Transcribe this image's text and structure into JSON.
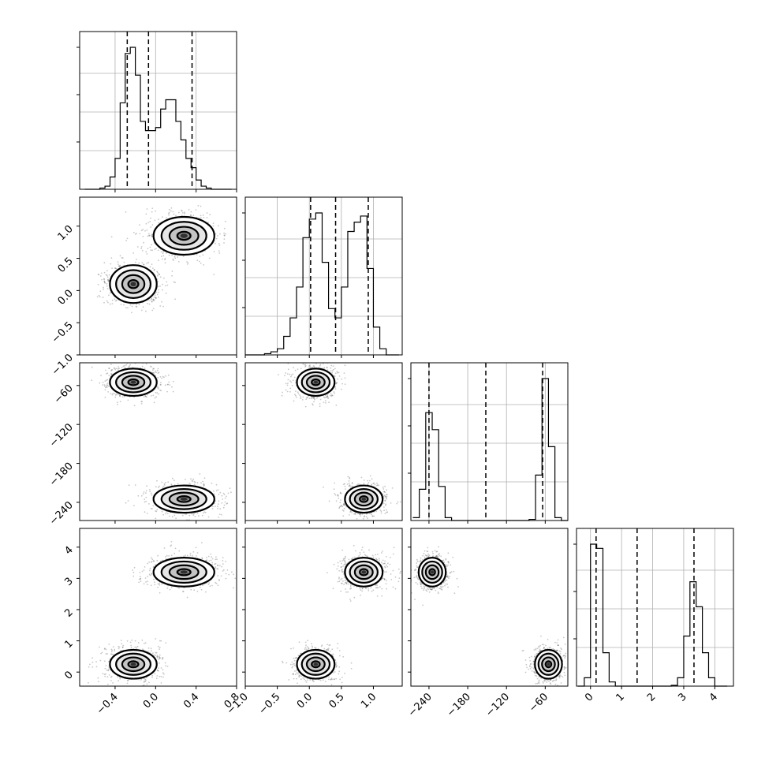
{
  "chart_data": {
    "type": "corner",
    "parameters": [
      {
        "ticks": [
          -0.4,
          0.0,
          0.4,
          0.8
        ],
        "tick_labels": [
          "−0.4",
          "0.0",
          "0.4",
          "0.8"
        ],
        "range": [
          -0.75,
          0.8
        ],
        "quantiles": [
          -0.28,
          -0.07,
          0.36
        ],
        "bins": [
          -0.7,
          -0.65,
          -0.6,
          -0.55,
          -0.5,
          -0.45,
          -0.4,
          -0.35,
          -0.3,
          -0.25,
          -0.2,
          -0.15,
          -0.1,
          -0.05,
          0.0,
          0.05,
          0.1,
          0.15,
          0.2,
          0.25,
          0.3,
          0.35,
          0.4,
          0.45,
          0.5,
          0.55,
          0.6,
          0.65,
          0.7,
          0.75
        ],
        "counts": [
          0,
          0,
          0,
          2,
          5,
          20,
          50,
          140,
          220,
          230,
          185,
          110,
          95,
          95,
          100,
          130,
          145,
          145,
          110,
          80,
          50,
          35,
          15,
          5,
          2,
          0,
          0,
          0,
          0
        ]
      },
      {
        "ticks": [
          -1.0,
          -0.5,
          0.0,
          0.5,
          1.0
        ],
        "tick_labels": [
          "−1.0",
          "−0.5",
          "0.0",
          "0.5",
          "1.0"
        ],
        "range": [
          -1.0,
          1.45
        ],
        "quantiles": [
          0.02,
          0.41,
          0.92
        ],
        "bins": [
          -1.0,
          -0.9,
          -0.8,
          -0.7,
          -0.6,
          -0.5,
          -0.4,
          -0.3,
          -0.2,
          -0.1,
          0.0,
          0.1,
          0.2,
          0.3,
          0.4,
          0.5,
          0.6,
          0.7,
          0.8,
          0.9,
          1.0,
          1.1,
          1.2,
          1.3,
          1.4
        ],
        "counts": [
          0,
          0,
          0,
          2,
          5,
          10,
          30,
          60,
          110,
          190,
          220,
          230,
          150,
          75,
          60,
          110,
          200,
          215,
          225,
          140,
          45,
          10,
          0,
          0
        ]
      },
      {
        "ticks": [
          -240,
          -180,
          -120,
          -60
        ],
        "tick_labels": [
          "−240",
          "−180",
          "−120",
          "−60"
        ],
        "range": [
          -268,
          -25
        ],
        "quantiles": [
          -240,
          -152,
          -64
        ],
        "bins": [
          -265,
          -255,
          -245,
          -235,
          -225,
          -215,
          -205,
          -195,
          -185,
          -175,
          -165,
          -155,
          -145,
          -135,
          -125,
          -115,
          -105,
          -95,
          -85,
          -75,
          -65,
          -55,
          -45,
          -35,
          -25
        ],
        "counts": [
          5,
          55,
          190,
          160,
          60,
          5,
          0,
          0,
          0,
          0,
          0,
          0,
          0,
          0,
          0,
          0,
          0,
          0,
          2,
          80,
          250,
          130,
          5,
          0
        ]
      },
      {
        "ticks": [
          0,
          1,
          2,
          3,
          4
        ],
        "tick_labels": [
          "0",
          "1",
          "2",
          "3",
          "4"
        ],
        "range": [
          -0.45,
          4.6
        ],
        "quantiles": [
          0.18,
          1.5,
          3.33
        ],
        "bins": [
          -0.4,
          -0.2,
          0.0,
          0.2,
          0.4,
          0.6,
          0.8,
          1.0,
          1.2,
          1.4,
          1.6,
          1.8,
          2.0,
          2.2,
          2.4,
          2.6,
          2.8,
          3.0,
          3.2,
          3.4,
          3.6,
          3.8,
          4.0,
          4.2,
          4.4
        ],
        "counts": [
          0,
          10,
          170,
          165,
          40,
          5,
          0,
          0,
          0,
          0,
          0,
          0,
          0,
          0,
          0,
          1,
          10,
          60,
          125,
          95,
          40,
          10,
          0,
          0
        ]
      }
    ],
    "y_ticks_top_panels": [
      {
        "ticks": [
          -1.0,
          -0.5,
          0.0,
          0.5,
          1.0
        ],
        "tick_labels": [
          "−1.0",
          "−0.5",
          "0.0",
          "0.5",
          "1.0"
        ]
      },
      {
        "ticks": [
          -60,
          -120,
          -180,
          -240
        ],
        "tick_labels": [
          "−60",
          "−120",
          "−180",
          "−240"
        ]
      },
      {
        "ticks": [
          4,
          3,
          2,
          1,
          0
        ],
        "tick_labels": [
          "4",
          "3",
          "2",
          "1",
          "0"
        ]
      }
    ],
    "modes": [
      {
        "p0": -0.22,
        "p1": 0.1,
        "p2": -55,
        "p3": 0.25
      },
      {
        "p0": 0.28,
        "p1": 0.85,
        "p2": -235,
        "p3": 3.2
      }
    ],
    "grid": true,
    "legend": "none"
  }
}
